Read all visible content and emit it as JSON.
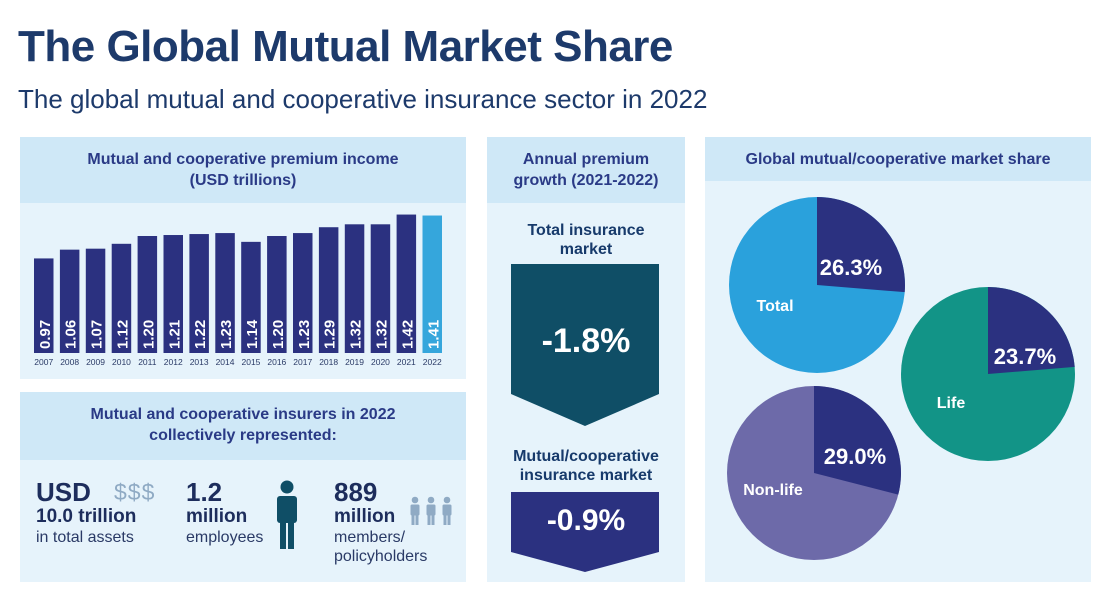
{
  "header": {
    "title": "The Global Mutual Market Share",
    "subtitle": "The global mutual and cooperative insurance sector in 2022"
  },
  "premium_panel": {
    "title_line1": "Mutual and cooperative premium income",
    "title_line2": "(USD trillions)"
  },
  "stats_panel": {
    "title_line1": "Mutual and cooperative insurers in 2022",
    "title_line2": "collectively represented:",
    "assets": {
      "line1": "USD",
      "line2": "10.0 trillion",
      "line3": "in total assets",
      "icon": "$$$"
    },
    "employees": {
      "line1": "1.2",
      "line2": "million",
      "line3": "employees",
      "icon": "person-icon"
    },
    "members": {
      "line1": "889",
      "line2": "million",
      "line3": "members/",
      "line4": "policyholders",
      "icon": "people-icon"
    }
  },
  "growth_panel": {
    "title_line1": "Annual premium",
    "title_line2": "growth (2021-2022)",
    "total_label_line1": "Total insurance",
    "total_label_line2": "market",
    "total_value": "-1.8%",
    "mutual_label_line1": "Mutual/cooperative",
    "mutual_label_line2": "insurance market",
    "mutual_value": "-0.9%"
  },
  "colors": {
    "bar": "#2b3180",
    "bar_highlight": "#35a6dc",
    "total_arrow": "#0f4e66",
    "mutual_arrow": "#2b3180",
    "pie_total": "#2aa1dc",
    "pie_life": "#129487",
    "pie_nonlife": "#6d6aa9",
    "pie_share": "#2b3180"
  },
  "chart_data": [
    {
      "type": "bar",
      "title": "Mutual and cooperative premium income (USD trillions)",
      "categories": [
        "2007",
        "2008",
        "2009",
        "2010",
        "2011",
        "2012",
        "2013",
        "2014",
        "2015",
        "2016",
        "2017",
        "2018",
        "2019",
        "2020",
        "2021",
        "2022"
      ],
      "values": [
        0.97,
        1.06,
        1.07,
        1.12,
        1.2,
        1.21,
        1.22,
        1.23,
        1.14,
        1.2,
        1.23,
        1.29,
        1.32,
        1.32,
        1.42,
        1.41
      ],
      "labels": [
        "0.97",
        "1.06",
        "1.07",
        "1.12",
        "1.20",
        "1.21",
        "1.22",
        "1.23",
        "1.14",
        "1.20",
        "1.23",
        "1.29",
        "1.32",
        "1.32",
        "1.42",
        "1.41"
      ],
      "ylim": [
        0,
        1.5
      ],
      "highlight": "2022"
    },
    {
      "type": "pie",
      "title": "Global mutual/cooperative market share",
      "charts": [
        {
          "name": "Total",
          "share": 26.3,
          "share_label": "26.3%"
        },
        {
          "name": "Life",
          "share": 23.7,
          "share_label": "23.7%"
        },
        {
          "name": "Non-life",
          "share": 29.0,
          "share_label": "29.0%"
        }
      ]
    }
  ]
}
